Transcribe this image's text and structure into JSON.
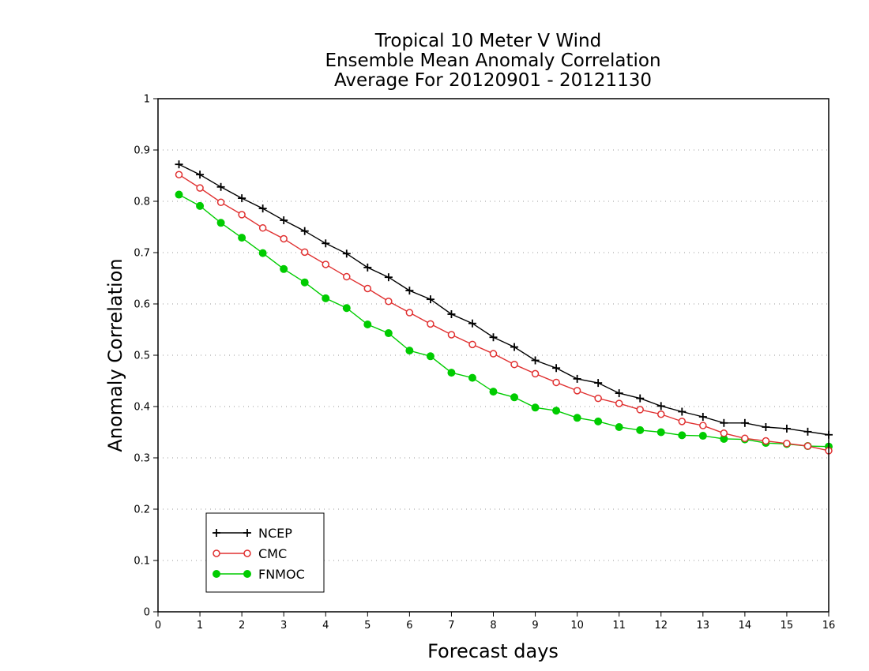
{
  "chart_data": {
    "type": "line",
    "title_lines": [
      "Tropical 10 Meter V Wind",
      "Ensemble Mean Anomaly Correlation",
      "Average For 20120901 - 20121130"
    ],
    "xlabel": "Forecast days",
    "ylabel": "Anomaly Correlation",
    "xlim": [
      0,
      16
    ],
    "ylim": [
      0,
      1
    ],
    "xticks": [
      "0",
      "1",
      "2",
      "3",
      "4",
      "5",
      "6",
      "7",
      "8",
      "9",
      "10",
      "11",
      "12",
      "13",
      "14",
      "15",
      "16"
    ],
    "yticks": [
      "0",
      "0.1",
      "0.2",
      "0.3",
      "0.4",
      "0.5",
      "0.6",
      "0.7",
      "0.8",
      "0.9",
      "1"
    ],
    "grid": true,
    "legend_position": "bottom-left",
    "x": [
      0.5,
      1,
      1.5,
      2,
      2.5,
      3,
      3.5,
      4,
      4.5,
      5,
      5.5,
      6,
      6.5,
      7,
      7.5,
      8,
      8.5,
      9,
      9.5,
      10,
      10.5,
      11,
      11.5,
      12,
      12.5,
      13,
      13.5,
      14,
      14.5,
      15,
      15.5,
      16
    ],
    "series": [
      {
        "name": "NCEP",
        "color": "#000000",
        "marker": "plus",
        "values": [
          0.872,
          0.852,
          0.828,
          0.806,
          0.786,
          0.763,
          0.742,
          0.718,
          0.698,
          0.671,
          0.652,
          0.626,
          0.609,
          0.58,
          0.562,
          0.535,
          0.516,
          0.49,
          0.475,
          0.454,
          0.446,
          0.426,
          0.416,
          0.401,
          0.39,
          0.38,
          0.368,
          0.368,
          0.36,
          0.357,
          0.351,
          0.345
        ]
      },
      {
        "name": "CMC",
        "color": "#e03030",
        "marker": "open-circle",
        "values": [
          0.852,
          0.826,
          0.798,
          0.774,
          0.748,
          0.727,
          0.701,
          0.677,
          0.653,
          0.63,
          0.605,
          0.583,
          0.561,
          0.54,
          0.521,
          0.503,
          0.482,
          0.464,
          0.447,
          0.431,
          0.416,
          0.406,
          0.394,
          0.385,
          0.371,
          0.363,
          0.348,
          0.338,
          0.333,
          0.328,
          0.323,
          0.314
        ]
      },
      {
        "name": "FNMOC",
        "color": "#00cc00",
        "marker": "filled-circle",
        "values": [
          0.813,
          0.791,
          0.758,
          0.729,
          0.699,
          0.668,
          0.642,
          0.611,
          0.592,
          0.56,
          0.543,
          0.509,
          0.498,
          0.466,
          0.456,
          0.429,
          0.418,
          0.398,
          0.392,
          0.378,
          0.371,
          0.36,
          0.354,
          0.35,
          0.344,
          0.343,
          0.337,
          0.336,
          0.329,
          0.327,
          0.323,
          0.322
        ]
      }
    ]
  }
}
